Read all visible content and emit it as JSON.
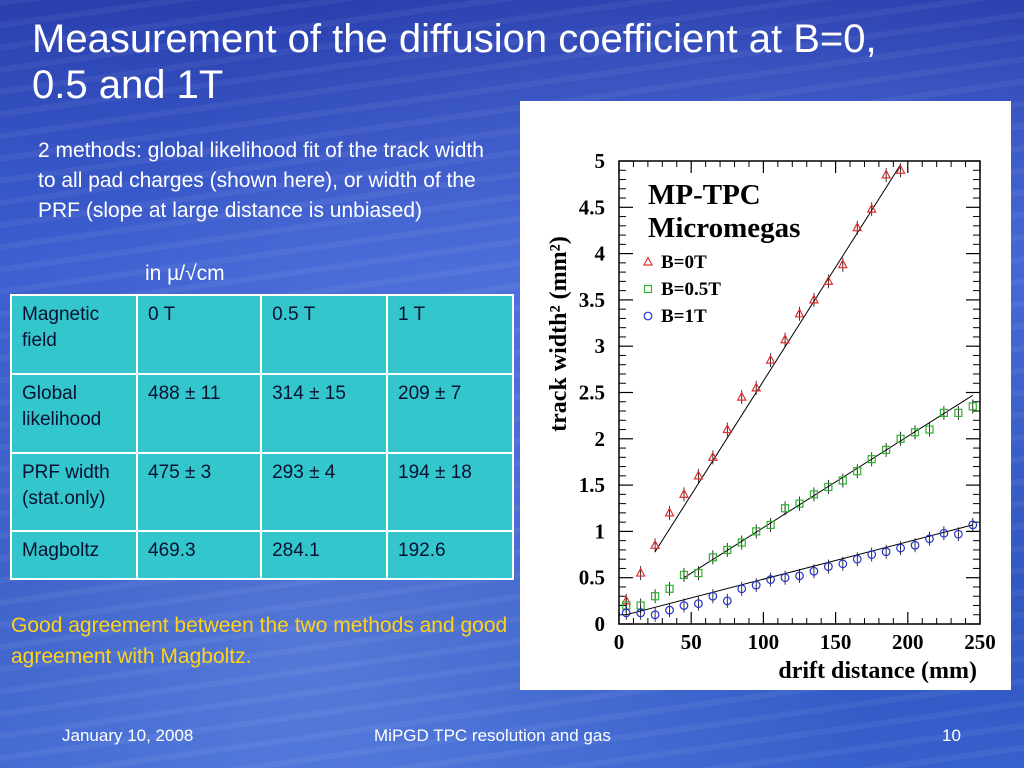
{
  "slide": {
    "title": "Measurement of the diffusion coefficient at B=0, 0.5 and 1T",
    "intro": "2 methods: global likelihood fit of the track width to all pad charges (shown here), or width of the PRF (slope at large distance is unbiased)",
    "units": "in µ/√cm",
    "conclusion": "Good agreement between the two methods and good agreement with Magboltz.",
    "footer": {
      "date": "January 10, 2008",
      "center": "MiPGD TPC resolution and gas",
      "page": "10"
    }
  },
  "table": {
    "rows": [
      [
        "Magnetic field",
        "0 T",
        "0.5 T",
        "1 T"
      ],
      [
        "Global likelihood",
        "488 ± 11",
        "314 ± 15",
        "209 ± 7"
      ],
      [
        "PRF width (stat.only)",
        "475 ± 3",
        "293 ± 4",
        "194 ± 18"
      ],
      [
        "Magboltz",
        "469.3",
        "284.1",
        "192.6"
      ]
    ]
  },
  "colors": {
    "title_text": "#ffffff",
    "conclusion_text": "#ffd21a",
    "table_fill": "#33c7cd",
    "series_0T": "#e03030",
    "series_05T": "#30b030",
    "series_1T": "#2030d0"
  },
  "chart_data": {
    "type": "scatter",
    "title": "MP-TPC",
    "subtitle": "Micromegas",
    "xlabel": "drift distance (mm)",
    "ylabel": "track width² (mm²)",
    "xlim": [
      0,
      250
    ],
    "ylim": [
      0,
      5
    ],
    "xticks": [
      "0",
      "50",
      "100",
      "150",
      "200",
      "250"
    ],
    "yticks": [
      "0",
      "0.5",
      "1",
      "1.5",
      "2",
      "2.5",
      "3",
      "3.5",
      "4",
      "4.5",
      "5"
    ],
    "legend_position": "top-left",
    "grid": false,
    "series": [
      {
        "name": "B=0T",
        "marker": "triangle",
        "x": [
          5,
          15,
          25,
          35,
          45,
          55,
          65,
          75,
          85,
          95,
          105,
          115,
          125,
          135,
          145,
          155,
          165,
          175,
          185,
          195
        ],
        "y": [
          0.25,
          0.55,
          0.85,
          1.2,
          1.4,
          1.6,
          1.8,
          2.1,
          2.45,
          2.55,
          2.85,
          3.07,
          3.35,
          3.5,
          3.7,
          3.88,
          4.28,
          4.48,
          4.85,
          4.9
        ],
        "fit": [
          [
            25,
            0.78
          ],
          [
            195,
            4.96
          ]
        ]
      },
      {
        "name": "B=0.5T",
        "marker": "square",
        "x": [
          5,
          15,
          25,
          35,
          45,
          55,
          65,
          75,
          85,
          95,
          105,
          115,
          125,
          135,
          145,
          155,
          165,
          175,
          185,
          195,
          205,
          215,
          225,
          235,
          245
        ],
        "y": [
          0.2,
          0.2,
          0.3,
          0.38,
          0.53,
          0.55,
          0.72,
          0.8,
          0.88,
          1.0,
          1.07,
          1.25,
          1.3,
          1.4,
          1.48,
          1.55,
          1.65,
          1.78,
          1.88,
          2.0,
          2.07,
          2.1,
          2.28,
          2.28,
          2.35
        ],
        "fit": [
          [
            45,
            0.5
          ],
          [
            245,
            2.47
          ]
        ]
      },
      {
        "name": "B=1T",
        "marker": "circle",
        "x": [
          5,
          15,
          25,
          35,
          45,
          55,
          65,
          75,
          85,
          95,
          105,
          115,
          125,
          135,
          145,
          155,
          165,
          175,
          185,
          195,
          205,
          215,
          225,
          235,
          245
        ],
        "y": [
          0.12,
          0.12,
          0.1,
          0.15,
          0.2,
          0.22,
          0.3,
          0.25,
          0.38,
          0.42,
          0.48,
          0.5,
          0.52,
          0.57,
          0.62,
          0.65,
          0.7,
          0.75,
          0.78,
          0.82,
          0.85,
          0.92,
          0.98,
          0.97,
          1.07
        ],
        "fit": [
          [
            5,
            0.1
          ],
          [
            245,
            1.07
          ]
        ]
      }
    ]
  }
}
